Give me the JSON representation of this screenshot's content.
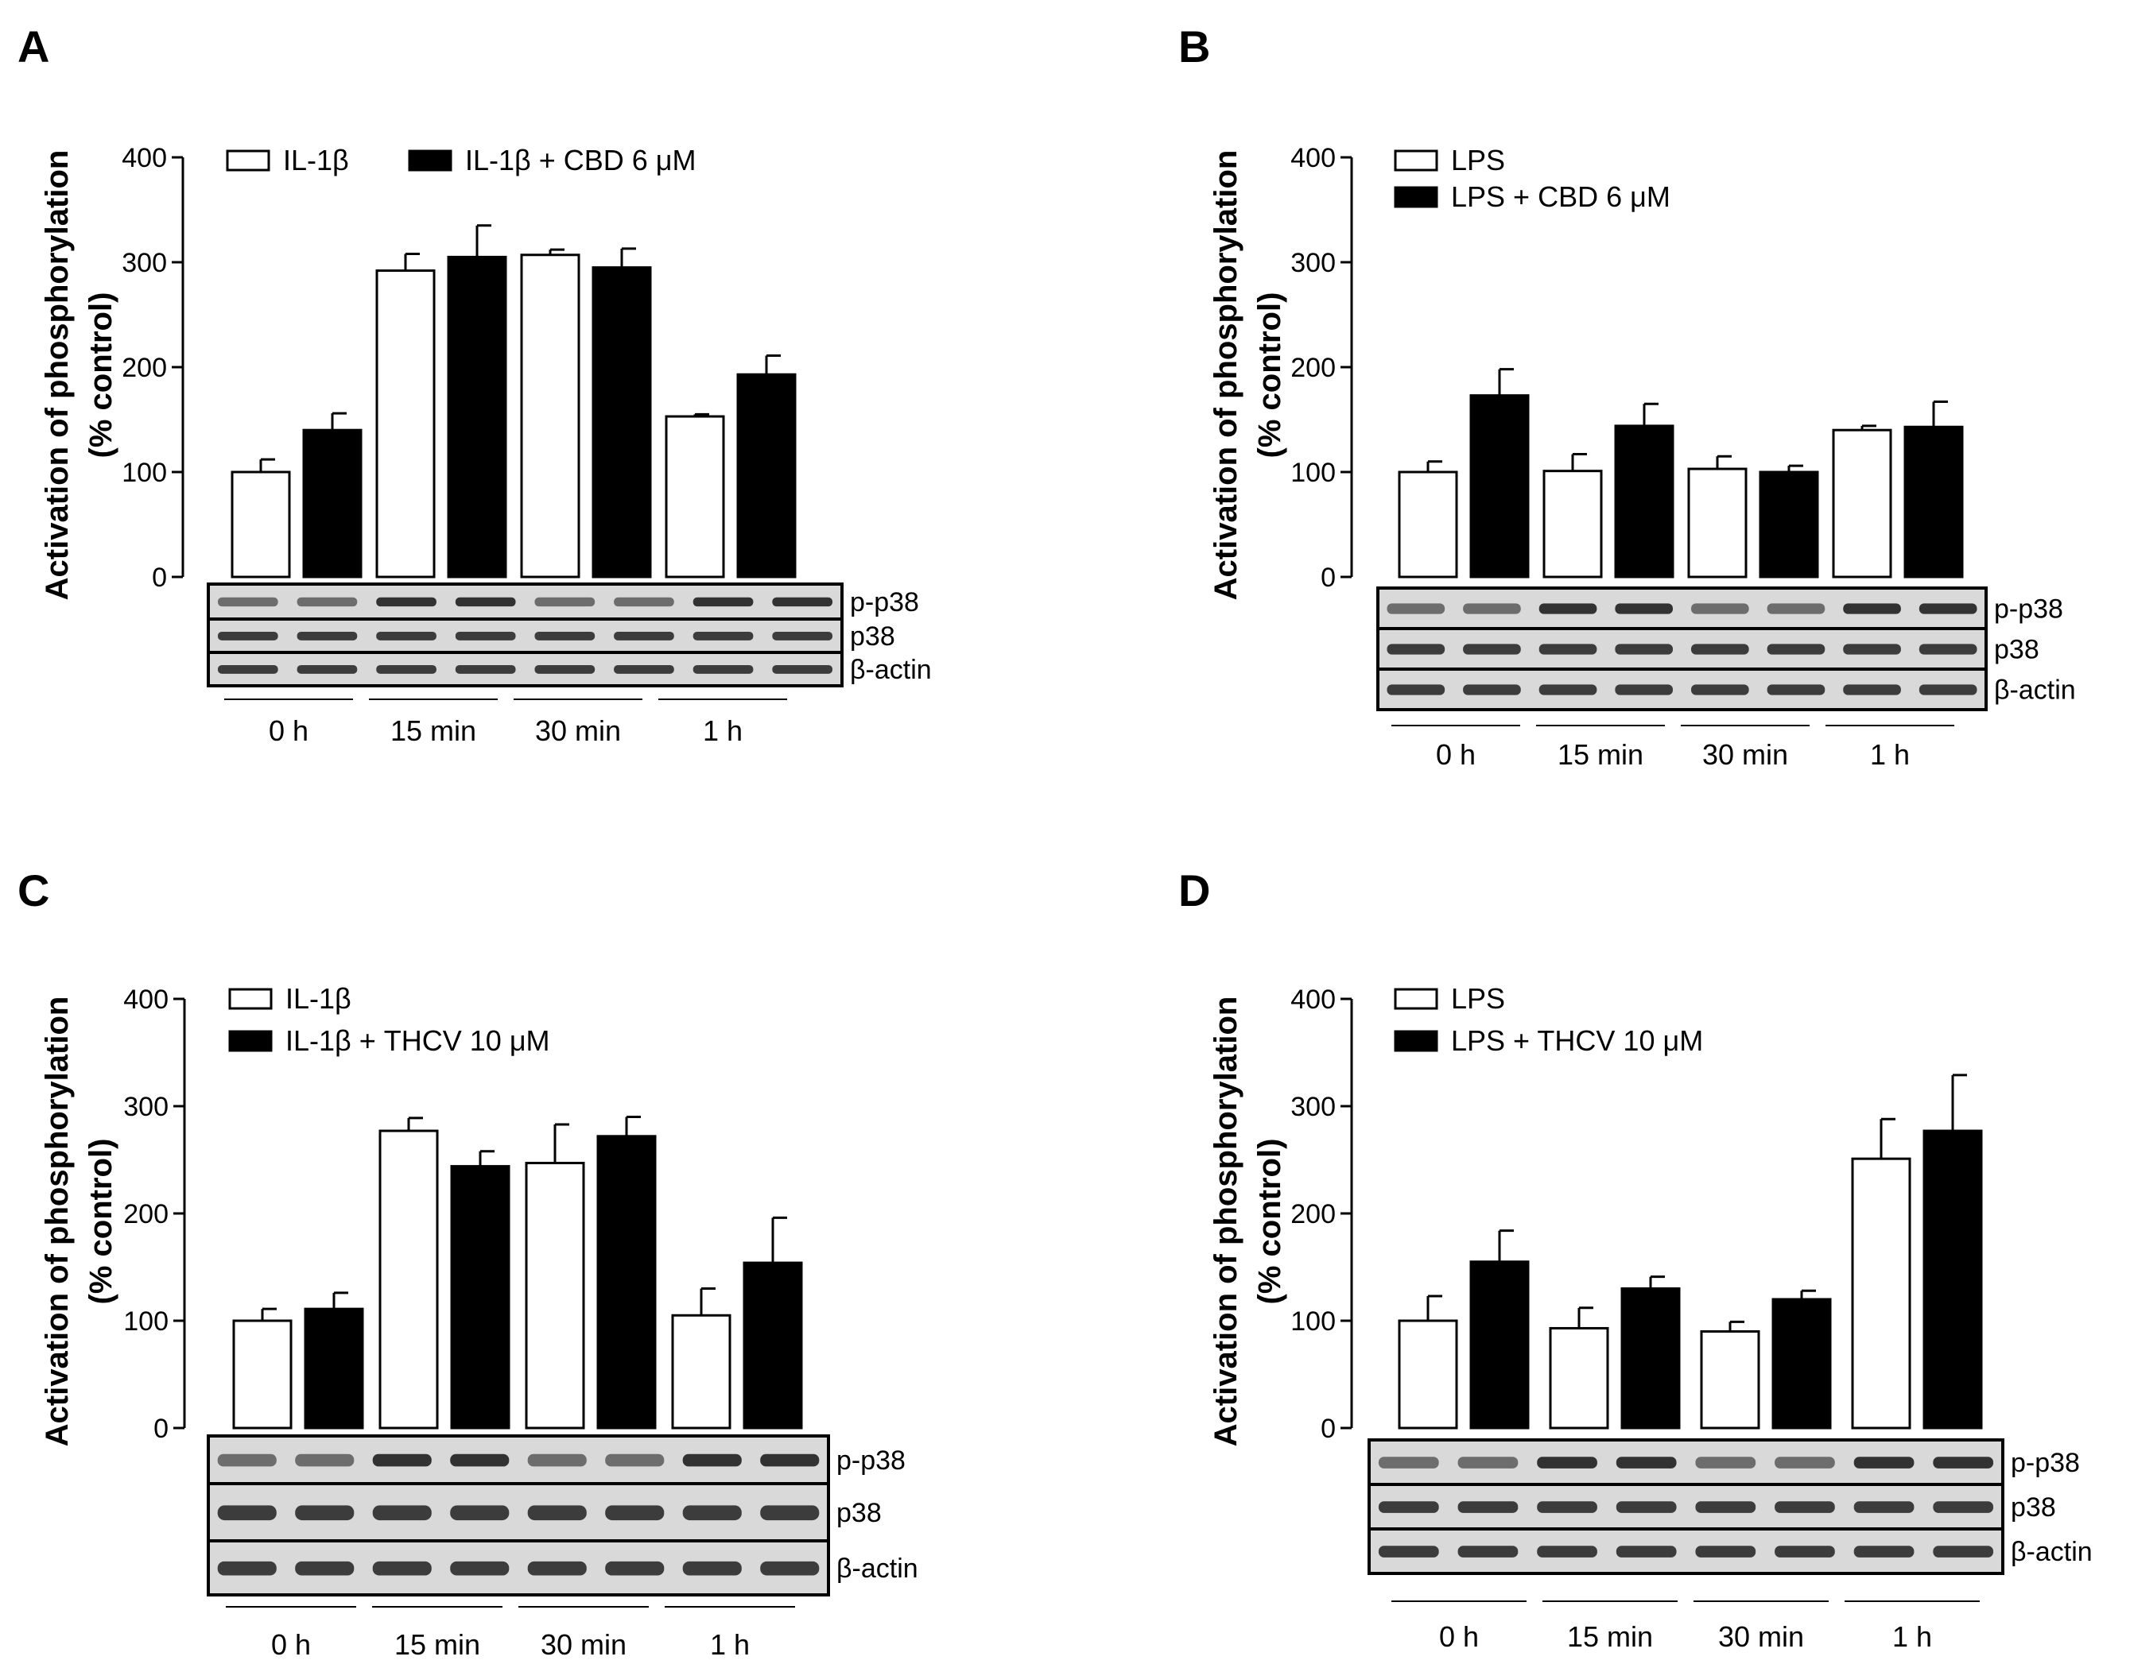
{
  "chart_data": [
    {
      "panel": "A",
      "type": "bar",
      "ylabel_line1": "Activation of phosphorylation",
      "ylabel_line2": "(% control)",
      "ylim": [
        0,
        400
      ],
      "yticks": [
        "0",
        "100",
        "200",
        "300",
        "400"
      ],
      "legend_layout": "horizontal",
      "categories": [
        "0 h",
        "15 min",
        "30 min",
        "1 h"
      ],
      "series": [
        {
          "name": "IL-1β",
          "fill": "#ffffff",
          "values": [
            100,
            292,
            307,
            153
          ],
          "errors": [
            12,
            16,
            5,
            2
          ]
        },
        {
          "name": "IL-1β + CBD 6 μM",
          "fill": "#000000",
          "values": [
            140,
            305,
            295,
            193
          ],
          "errors": [
            16,
            30,
            18,
            18
          ]
        }
      ],
      "blot_labels": [
        "p-p38",
        "p38",
        "β-actin"
      ]
    },
    {
      "panel": "B",
      "type": "bar",
      "ylabel_line1": "Activation of phosphorylation",
      "ylabel_line2": "(% control)",
      "ylim": [
        0,
        400
      ],
      "yticks": [
        "0",
        "100",
        "200",
        "300",
        "400"
      ],
      "legend_layout": "vertical",
      "categories": [
        "0 h",
        "15 min",
        "30 min",
        "1 h"
      ],
      "series": [
        {
          "name": "LPS",
          "fill": "#ffffff",
          "values": [
            100,
            101,
            103,
            140
          ],
          "errors": [
            10,
            16,
            12,
            4
          ]
        },
        {
          "name": "LPS + CBD 6 μM",
          "fill": "#000000",
          "values": [
            173,
            144,
            100,
            143
          ],
          "errors": [
            25,
            21,
            6,
            24
          ]
        }
      ],
      "blot_labels": [
        "p-p38",
        "p38",
        "β-actin"
      ]
    },
    {
      "panel": "C",
      "type": "bar",
      "ylabel_line1": "Activation of phosphorylation",
      "ylabel_line2": "(% control)",
      "ylim": [
        0,
        400
      ],
      "yticks": [
        "0",
        "100",
        "200",
        "300",
        "400"
      ],
      "legend_layout": "vertical",
      "categories": [
        "0 h",
        "15 min",
        "30 min",
        "1 h"
      ],
      "series": [
        {
          "name": "IL-1β",
          "fill": "#ffffff",
          "values": [
            100,
            277,
            247,
            105
          ],
          "errors": [
            11,
            12,
            36,
            25
          ]
        },
        {
          "name": "IL-1β + THCV 10 μM",
          "fill": "#000000",
          "values": [
            111,
            244,
            272,
            154
          ],
          "errors": [
            15,
            14,
            18,
            42
          ]
        }
      ],
      "blot_labels": [
        "p-p38",
        "p38",
        "β-actin"
      ]
    },
    {
      "panel": "D",
      "type": "bar",
      "ylabel_line1": "Activation of phosphorylation",
      "ylabel_line2": "(% control)",
      "ylim": [
        0,
        400
      ],
      "yticks": [
        "0",
        "100",
        "200",
        "300",
        "400"
      ],
      "legend_layout": "vertical",
      "categories": [
        "0 h",
        "15 min",
        "30 min",
        "1 h"
      ],
      "series": [
        {
          "name": "LPS",
          "fill": "#ffffff",
          "values": [
            100,
            93,
            90,
            251
          ],
          "errors": [
            23,
            19,
            9,
            37
          ]
        },
        {
          "name": "LPS + THCV 10 μM",
          "fill": "#000000",
          "values": [
            155,
            130,
            120,
            277
          ],
          "errors": [
            29,
            11,
            8,
            52
          ]
        }
      ],
      "blot_labels": [
        "p-p38",
        "p38",
        "β-actin"
      ]
    }
  ]
}
